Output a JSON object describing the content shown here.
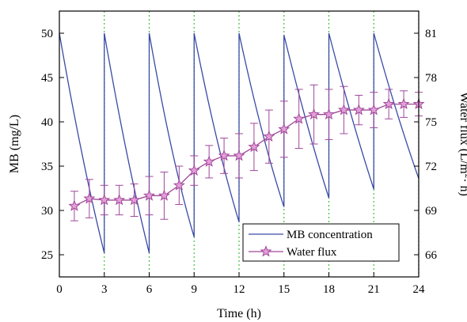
{
  "chart_data": {
    "type": "line",
    "xlabel": "Time (h)",
    "ylabel_left": "MB (mg/L)",
    "ylabel_right_main": "Water flux (L/m",
    "ylabel_right_sup": "2",
    "ylabel_right_tail": "· h)",
    "xlim": [
      0,
      24
    ],
    "ylim_left": [
      22.5,
      52.5
    ],
    "ylim_right": [
      64.5,
      82.5
    ],
    "x_ticks": [
      0,
      3,
      6,
      9,
      12,
      15,
      18,
      21,
      24
    ],
    "x_tick_labels": [
      "0",
      "3",
      "6",
      "9",
      "12",
      "15",
      "18",
      "21",
      "24"
    ],
    "y_left_ticks": [
      25,
      30,
      35,
      40,
      45,
      50
    ],
    "y_left_tick_labels": [
      "25",
      "30",
      "35",
      "40",
      "45",
      "50"
    ],
    "y_right_ticks": [
      66,
      69,
      72,
      75,
      78,
      81
    ],
    "y_right_tick_labels": [
      "66",
      "69",
      "72",
      "75",
      "78",
      "81"
    ],
    "grid": "vertical dotted at cycle boundaries",
    "reset_lines_x": [
      3,
      6,
      9,
      12,
      15,
      18,
      21,
      24
    ],
    "legend": {
      "position": "bottom-right",
      "items": [
        "MB concentration",
        "Water flux"
      ]
    },
    "series": [
      {
        "name": "MB concentration",
        "axis": "left",
        "color": "#3a4aa6",
        "points": [
          [
            0,
            50
          ],
          [
            1.5,
            36.5
          ],
          [
            3,
            25.2
          ],
          [
            3,
            50
          ],
          [
            4.5,
            36.5
          ],
          [
            6,
            25.2
          ],
          [
            6,
            50
          ],
          [
            7.5,
            37
          ],
          [
            9,
            27
          ],
          [
            9,
            50
          ],
          [
            10.5,
            38.2
          ],
          [
            12,
            28.7
          ],
          [
            12,
            50
          ],
          [
            13.5,
            39.2
          ],
          [
            15,
            30.4
          ],
          [
            15,
            49.8
          ],
          [
            16.5,
            40
          ],
          [
            18,
            31.4
          ],
          [
            18,
            50
          ],
          [
            19.5,
            40.7
          ],
          [
            21,
            32.4
          ],
          [
            21,
            50
          ],
          [
            22.5,
            41.3
          ],
          [
            24,
            33.6
          ]
        ]
      },
      {
        "name": "Water flux",
        "axis": "right",
        "color": "#a0489a",
        "x": [
          1,
          2,
          3,
          4,
          5,
          6,
          7,
          8,
          9,
          10,
          11,
          12,
          13,
          14,
          15,
          16,
          17,
          18,
          19,
          20,
          21,
          22,
          23,
          24
        ],
        "y": [
          69.3,
          69.8,
          69.7,
          69.7,
          69.7,
          70.0,
          70.0,
          70.7,
          71.7,
          72.3,
          72.7,
          72.7,
          73.3,
          74.0,
          74.5,
          75.2,
          75.5,
          75.5,
          75.8,
          75.8,
          75.8,
          76.2,
          76.2,
          76.2
        ],
        "error": [
          1.0,
          1.3,
          1.0,
          1.0,
          1.1,
          1.3,
          1.6,
          1.3,
          1.0,
          1.1,
          1.2,
          1.5,
          1.6,
          1.8,
          1.9,
          2.0,
          2.0,
          1.7,
          1.6,
          1.0,
          1.2,
          1.0,
          0.9,
          0.8
        ]
      }
    ]
  }
}
